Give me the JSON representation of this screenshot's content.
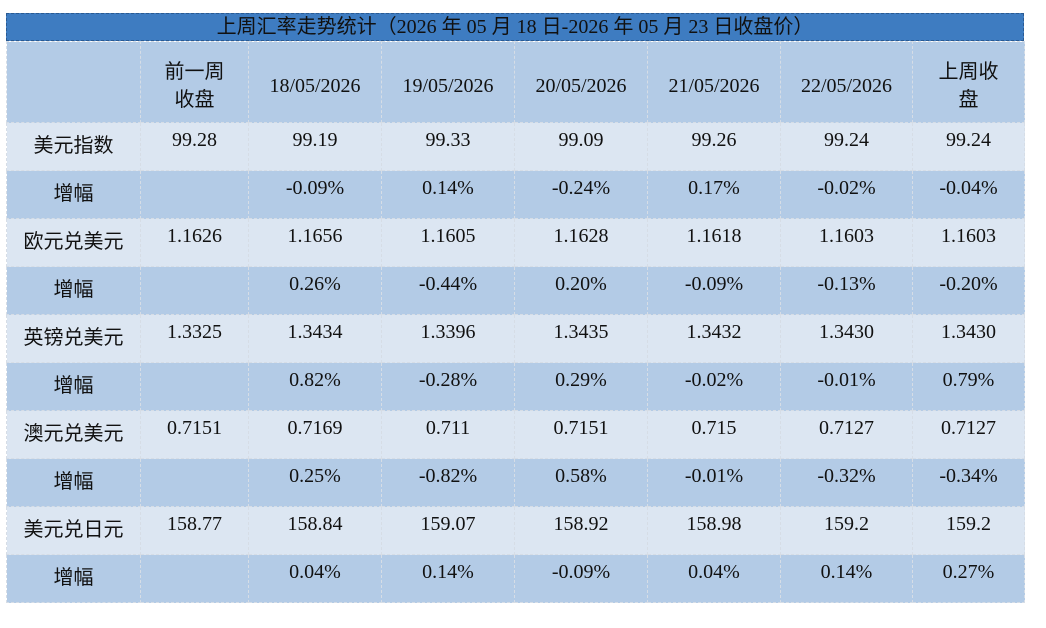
{
  "title": "上周汇率走势统计（2026 年 05 月 18 日-2026 年 05 月 23 日收盘价）",
  "header": [
    "前一周收盘",
    "18/05/2026",
    "19/05/2026",
    "20/05/2026",
    "21/05/2026",
    "22/05/2026",
    "上周收盘"
  ],
  "rows": [
    {
      "label": "美元指数",
      "cells": [
        "99.28",
        "99.19",
        "99.33",
        "99.09",
        "99.26",
        "99.24",
        "99.24"
      ]
    },
    {
      "label": "增幅",
      "cells": [
        "-0.09%",
        "0.14%",
        "-0.24%",
        "0.17%",
        "-0.02%",
        "-0.04%"
      ]
    },
    {
      "label": "欧元兑美元",
      "cells": [
        "1.1626",
        "1.1656",
        "1.1605",
        "1.1628",
        "1.1618",
        "1.1603",
        "1.1603"
      ]
    },
    {
      "label": "增幅",
      "cells": [
        "0.26%",
        "-0.44%",
        "0.20%",
        "-0.09%",
        "-0.13%",
        "-0.20%"
      ]
    },
    {
      "label": "英镑兑美元",
      "cells": [
        "1.3325",
        "1.3434",
        "1.3396",
        "1.3435",
        "1.3432",
        "1.3430",
        "1.3430"
      ]
    },
    {
      "label": "增幅",
      "cells": [
        "0.82%",
        "-0.28%",
        "0.29%",
        "-0.02%",
        "-0.01%",
        "0.79%"
      ]
    },
    {
      "label": "澳元兑美元",
      "cells": [
        "0.7151",
        "0.7169",
        "0.711",
        "0.7151",
        "0.715",
        "0.7127",
        "0.7127"
      ]
    },
    {
      "label": "增幅",
      "cells": [
        "0.25%",
        "-0.82%",
        "0.58%",
        "-0.01%",
        "-0.32%",
        "-0.34%"
      ]
    },
    {
      "label": "美元兑日元",
      "cells": [
        "158.77",
        "158.84",
        "159.07",
        "158.92",
        "158.98",
        "159.2",
        "159.2"
      ]
    },
    {
      "label": "增幅",
      "cells": [
        "0.04%",
        "0.14%",
        "-0.09%",
        "0.04%",
        "0.14%",
        "0.27%"
      ]
    }
  ]
}
